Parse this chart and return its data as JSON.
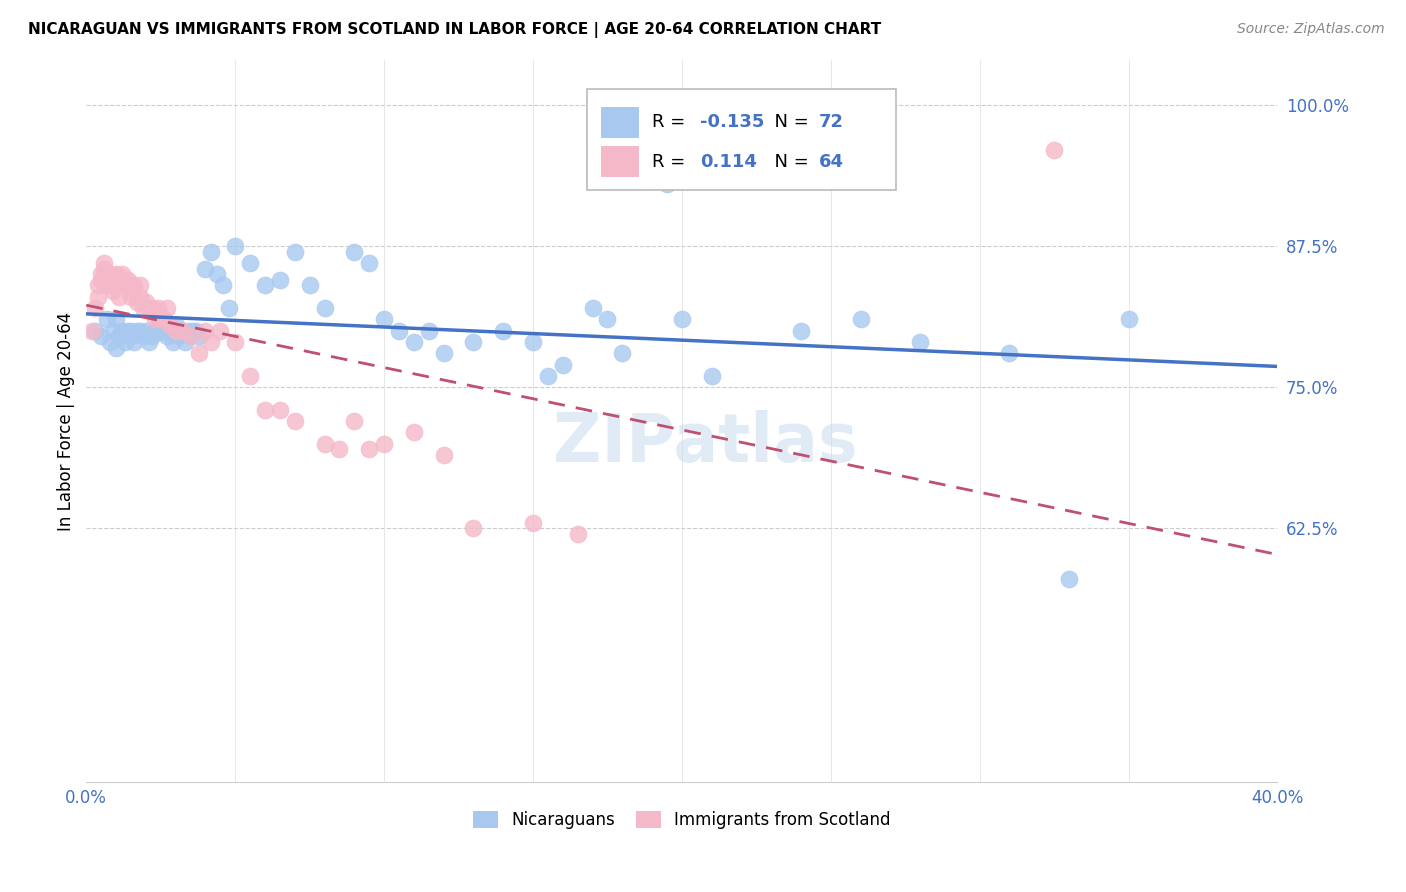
{
  "title": "NICARAGUAN VS IMMIGRANTS FROM SCOTLAND IN LABOR FORCE | AGE 20-64 CORRELATION CHART",
  "source": "Source: ZipAtlas.com",
  "ylabel": "In Labor Force | Age 20-64",
  "xlim": [
    0.0,
    0.4
  ],
  "ylim": [
    0.4,
    1.04
  ],
  "legend_blue_r": "-0.135",
  "legend_blue_n": "72",
  "legend_pink_r": "0.114",
  "legend_pink_n": "64",
  "blue_color": "#A8C8F0",
  "pink_color": "#F5B8C8",
  "blue_line_color": "#4472C4",
  "pink_line_color": "#C05070",
  "watermark": "ZIPatlas",
  "blue_scatter_x": [
    0.003,
    0.005,
    0.007,
    0.008,
    0.009,
    0.01,
    0.01,
    0.011,
    0.012,
    0.013,
    0.014,
    0.015,
    0.015,
    0.016,
    0.017,
    0.018,
    0.019,
    0.02,
    0.021,
    0.022,
    0.023,
    0.024,
    0.025,
    0.026,
    0.027,
    0.028,
    0.029,
    0.03,
    0.031,
    0.032,
    0.033,
    0.034,
    0.035,
    0.036,
    0.037,
    0.038,
    0.04,
    0.042,
    0.044,
    0.046,
    0.048,
    0.05,
    0.055,
    0.06,
    0.065,
    0.07,
    0.075,
    0.08,
    0.09,
    0.095,
    0.1,
    0.105,
    0.11,
    0.115,
    0.12,
    0.13,
    0.14,
    0.15,
    0.155,
    0.16,
    0.17,
    0.175,
    0.18,
    0.2,
    0.21,
    0.24,
    0.26,
    0.28,
    0.31,
    0.33,
    0.35,
    0.195
  ],
  "blue_scatter_y": [
    0.8,
    0.795,
    0.81,
    0.79,
    0.8,
    0.785,
    0.81,
    0.795,
    0.8,
    0.79,
    0.8,
    0.795,
    0.8,
    0.79,
    0.8,
    0.8,
    0.795,
    0.8,
    0.79,
    0.795,
    0.8,
    0.805,
    0.8,
    0.8,
    0.795,
    0.8,
    0.79,
    0.805,
    0.795,
    0.8,
    0.79,
    0.8,
    0.795,
    0.8,
    0.8,
    0.795,
    0.855,
    0.87,
    0.85,
    0.84,
    0.82,
    0.875,
    0.86,
    0.84,
    0.845,
    0.87,
    0.84,
    0.82,
    0.87,
    0.86,
    0.81,
    0.8,
    0.79,
    0.8,
    0.78,
    0.79,
    0.8,
    0.79,
    0.76,
    0.77,
    0.82,
    0.81,
    0.78,
    0.81,
    0.76,
    0.8,
    0.81,
    0.79,
    0.78,
    0.58,
    0.81,
    0.93
  ],
  "pink_scatter_x": [
    0.002,
    0.003,
    0.004,
    0.004,
    0.005,
    0.005,
    0.006,
    0.006,
    0.007,
    0.007,
    0.008,
    0.008,
    0.009,
    0.009,
    0.01,
    0.01,
    0.011,
    0.011,
    0.012,
    0.012,
    0.013,
    0.013,
    0.014,
    0.014,
    0.015,
    0.015,
    0.016,
    0.016,
    0.017,
    0.018,
    0.018,
    0.019,
    0.02,
    0.021,
    0.022,
    0.023,
    0.024,
    0.025,
    0.026,
    0.027,
    0.028,
    0.03,
    0.032,
    0.035,
    0.038,
    0.04,
    0.042,
    0.045,
    0.05,
    0.055,
    0.06,
    0.065,
    0.07,
    0.08,
    0.085,
    0.09,
    0.095,
    0.1,
    0.11,
    0.12,
    0.13,
    0.15,
    0.165,
    0.325
  ],
  "pink_scatter_y": [
    0.8,
    0.82,
    0.83,
    0.84,
    0.845,
    0.85,
    0.855,
    0.86,
    0.84,
    0.85,
    0.84,
    0.85,
    0.835,
    0.845,
    0.84,
    0.85,
    0.83,
    0.845,
    0.84,
    0.85,
    0.84,
    0.845,
    0.84,
    0.845,
    0.83,
    0.84,
    0.835,
    0.84,
    0.825,
    0.83,
    0.84,
    0.82,
    0.825,
    0.82,
    0.82,
    0.81,
    0.82,
    0.81,
    0.81,
    0.82,
    0.805,
    0.8,
    0.8,
    0.795,
    0.78,
    0.8,
    0.79,
    0.8,
    0.79,
    0.76,
    0.73,
    0.73,
    0.72,
    0.7,
    0.695,
    0.72,
    0.695,
    0.7,
    0.71,
    0.69,
    0.625,
    0.63,
    0.62,
    0.96
  ]
}
